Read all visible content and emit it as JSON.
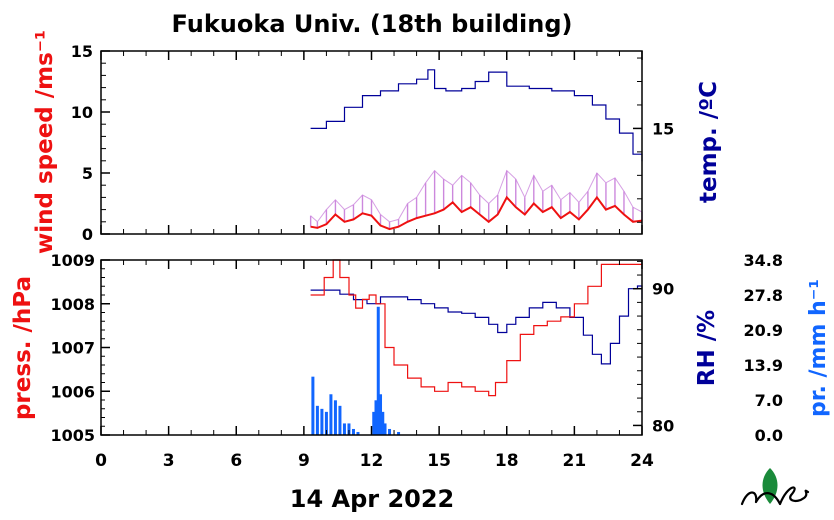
{
  "title": "Fukuoka Univ. (18th building)",
  "date_label": "14 Apr 2022",
  "colors": {
    "wind": "#ee1111",
    "wind_gust": "#cc88dd",
    "temperature": "#000099",
    "pressure": "#ee1111",
    "humidity": "#000099",
    "precipitation": "#1166ff",
    "logo": "#1a8a3a"
  },
  "chart_data": [
    {
      "type": "line",
      "panel": "wind-temperature",
      "xlabel": "",
      "xlim": [
        0,
        24
      ],
      "x_ticks": [
        "0",
        "3",
        "6",
        "9",
        "12",
        "15",
        "18",
        "21",
        "24"
      ],
      "y_left": {
        "label": "wind speed /ms⁻¹",
        "ylim": [
          0,
          15
        ],
        "ticks": [
          "0",
          "5",
          "10",
          "15"
        ]
      },
      "y_right": {
        "label": "temp. /ºC",
        "ylim": [
          10.5,
          18.3
        ],
        "ticks": [
          "15"
        ]
      },
      "series": [
        {
          "name": "wind speed",
          "axis": "left",
          "x": [
            9.3,
            9.6,
            10.0,
            10.4,
            10.8,
            11.2,
            11.6,
            12.0,
            12.4,
            12.8,
            13.2,
            13.6,
            14.0,
            14.4,
            14.8,
            15.2,
            15.6,
            16.0,
            16.4,
            16.8,
            17.2,
            17.6,
            18.0,
            18.4,
            18.8,
            19.2,
            19.6,
            20.0,
            20.4,
            20.8,
            21.2,
            21.6,
            22.0,
            22.4,
            22.8,
            23.2,
            23.6,
            24.0
          ],
          "values": [
            0.6,
            0.5,
            0.8,
            1.6,
            1.0,
            1.2,
            1.7,
            1.5,
            0.7,
            0.4,
            0.6,
            1.0,
            1.3,
            1.5,
            1.7,
            2.0,
            2.6,
            1.8,
            2.2,
            1.6,
            1.0,
            1.6,
            3.0,
            2.2,
            1.6,
            2.5,
            1.8,
            2.2,
            1.3,
            1.8,
            1.2,
            2.0,
            3.0,
            2.0,
            2.3,
            1.6,
            1.0,
            1.1
          ]
        },
        {
          "name": "max wind speed",
          "axis": "left",
          "x": [
            9.3,
            9.6,
            10.0,
            10.4,
            10.8,
            11.2,
            11.6,
            12.0,
            12.4,
            12.8,
            13.2,
            13.6,
            14.0,
            14.4,
            14.8,
            15.2,
            15.6,
            16.0,
            16.4,
            16.8,
            17.2,
            17.6,
            18.0,
            18.4,
            18.8,
            19.2,
            19.6,
            20.0,
            20.4,
            20.8,
            21.2,
            21.6,
            22.0,
            22.4,
            22.8,
            23.2,
            23.6,
            24.0
          ],
          "values": [
            1.5,
            1.0,
            2.0,
            2.8,
            2.0,
            2.4,
            3.2,
            2.8,
            1.6,
            1.0,
            1.2,
            2.5,
            3.0,
            4.2,
            5.2,
            4.5,
            4.0,
            4.8,
            4.2,
            3.2,
            2.5,
            3.2,
            5.2,
            4.5,
            3.0,
            4.8,
            3.5,
            4.0,
            2.8,
            3.4,
            2.6,
            3.5,
            5.0,
            4.2,
            4.6,
            3.5,
            2.2,
            1.8
          ]
        },
        {
          "name": "temperature",
          "axis": "right",
          "x": [
            9.3,
            10.0,
            10.8,
            11.6,
            12.4,
            13.2,
            14.0,
            14.5,
            14.8,
            15.3,
            16.0,
            16.6,
            17.2,
            17.6,
            18.0,
            19.0,
            20.0,
            21.0,
            21.8,
            22.4,
            23.0,
            23.6,
            24.0
          ],
          "values": [
            15.0,
            15.3,
            15.9,
            16.4,
            16.6,
            16.9,
            17.1,
            17.5,
            16.7,
            16.6,
            16.7,
            17.0,
            17.4,
            17.4,
            16.8,
            16.7,
            16.6,
            16.4,
            16.0,
            15.4,
            14.8,
            13.9,
            13.6
          ]
        }
      ]
    },
    {
      "type": "line",
      "panel": "pressure-humidity-precipitation",
      "xlabel": "",
      "xlim": [
        0,
        24
      ],
      "x_ticks": [
        "0",
        "3",
        "6",
        "9",
        "12",
        "15",
        "18",
        "21",
        "24"
      ],
      "y_left": {
        "label": "press. /hPa",
        "ylim": [
          1005,
          1009
        ],
        "ticks": [
          "1005",
          "1006",
          "1007",
          "1008",
          "1009"
        ]
      },
      "y_right": {
        "label": "RH /%",
        "ylim": [
          79.3,
          92.1
        ],
        "ticks": [
          "80",
          "90"
        ]
      },
      "y_right2": {
        "label": "pr. /mm h⁻¹",
        "ylim": [
          0,
          34.8
        ],
        "ticks": [
          "0.0",
          "7.0",
          "13.9",
          "20.9",
          "27.8",
          "34.8"
        ]
      },
      "series": [
        {
          "name": "pressure",
          "axis": "left",
          "x": [
            9.3,
            9.9,
            10.3,
            10.6,
            11.0,
            11.3,
            11.6,
            11.9,
            12.2,
            12.6,
            13.0,
            13.6,
            14.2,
            14.8,
            15.4,
            16.0,
            16.6,
            17.2,
            17.5,
            18.0,
            18.6,
            19.2,
            19.8,
            20.4,
            21.0,
            21.6,
            22.2,
            22.8,
            23.4,
            24.0
          ],
          "values": [
            1008.2,
            1008.6,
            1009.0,
            1008.6,
            1008.2,
            1007.9,
            1008.1,
            1008.2,
            1008.0,
            1007.0,
            1006.6,
            1006.3,
            1006.1,
            1006.0,
            1006.2,
            1006.1,
            1006.0,
            1005.9,
            1006.2,
            1006.7,
            1007.3,
            1007.5,
            1007.6,
            1007.7,
            1008.0,
            1008.4,
            1008.9,
            1008.9,
            1008.9,
            1008.9
          ]
        },
        {
          "name": "relative humidity",
          "axis": "right",
          "x": [
            9.3,
            10.0,
            10.6,
            11.2,
            11.8,
            12.4,
            13.0,
            13.6,
            14.2,
            14.8,
            15.4,
            16.0,
            16.6,
            17.2,
            17.6,
            18.0,
            18.4,
            19.0,
            19.6,
            20.2,
            20.8,
            21.4,
            21.8,
            22.2,
            22.6,
            23.0,
            23.4,
            23.8,
            24.0
          ],
          "values": [
            89.9,
            89.9,
            89.6,
            89.2,
            88.9,
            89.4,
            89.4,
            89.2,
            88.9,
            88.6,
            88.3,
            88.2,
            87.9,
            87.4,
            86.8,
            87.4,
            87.9,
            88.6,
            89.0,
            88.6,
            87.9,
            86.6,
            85.2,
            84.5,
            86.0,
            88.0,
            90.0,
            90.2,
            89.2
          ]
        },
        {
          "name": "precipitation",
          "type": "bar",
          "axis": "right2",
          "x": [
            9.4,
            9.6,
            9.8,
            10.0,
            10.2,
            10.4,
            10.6,
            10.8,
            11.0,
            11.2,
            11.4,
            12.1,
            12.2,
            12.3,
            12.4,
            12.5,
            12.6,
            12.8,
            13.2
          ],
          "values": [
            11.6,
            5.8,
            5.2,
            4.6,
            8.1,
            6.9,
            5.8,
            2.3,
            2.3,
            1.2,
            0.6,
            4.6,
            6.9,
            25.5,
            8.1,
            4.6,
            2.3,
            1.2,
            0.6
          ]
        }
      ]
    }
  ]
}
